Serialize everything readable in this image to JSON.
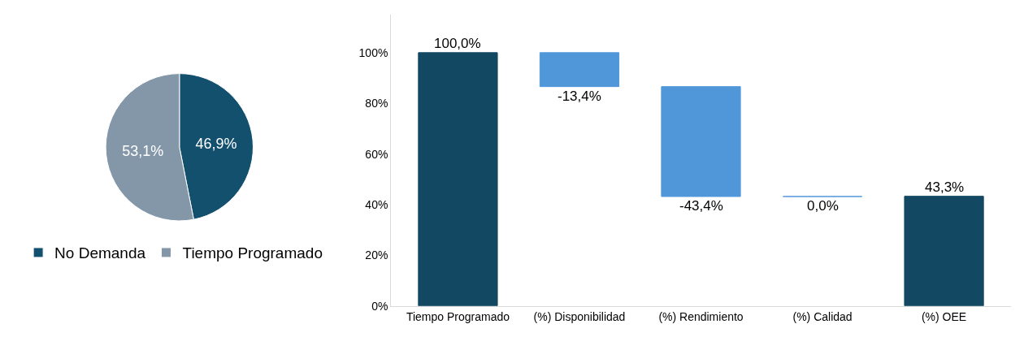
{
  "chart_data": [
    {
      "type": "pie",
      "categories": [
        "No Demanda",
        "Tiempo Programado"
      ],
      "values": [
        46.9,
        53.1
      ],
      "colors": [
        "#13506e",
        "#8497a8"
      ],
      "value_labels": [
        "46,9%",
        "53,1%"
      ],
      "legend": "bottom"
    },
    {
      "type": "bar",
      "categories": [
        "Tiempo Programado",
        "(%) Disponibilidad",
        "(%) Rendimiento",
        "(%) Calidad",
        "(%) OEE"
      ],
      "values": [
        100.0,
        -13.4,
        -43.4,
        0.0,
        43.3
      ],
      "base": [
        0,
        100.0,
        86.6,
        43.2,
        0
      ],
      "colors": [
        "#124862",
        "#5097da",
        "#5097da",
        "#5097da",
        "#124862"
      ],
      "value_labels": [
        "100,0%",
        "-13,4%",
        "-43,4%",
        "0,0%",
        "43,3%"
      ],
      "ylim": [
        0,
        115
      ],
      "yticks": [
        {
          "value": 0,
          "label": "0%"
        },
        {
          "value": 20,
          "label": "20%"
        },
        {
          "value": 40,
          "label": "40%"
        },
        {
          "value": 60,
          "label": "60%"
        },
        {
          "value": 80,
          "label": "80%"
        },
        {
          "value": 100,
          "label": "100%"
        }
      ],
      "grid": false,
      "legend": false
    }
  ]
}
